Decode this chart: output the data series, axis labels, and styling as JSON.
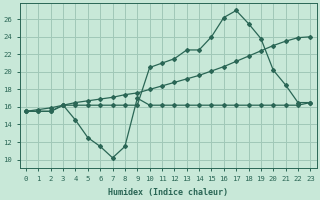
{
  "xlabel": "Humidex (Indice chaleur)",
  "bg_color": "#c8e8d8",
  "grid_color": "#a0c8b8",
  "line_color": "#2a6655",
  "xlim": [
    -0.5,
    23.5
  ],
  "ylim": [
    9.0,
    27.8
  ],
  "yticks": [
    10,
    12,
    14,
    16,
    18,
    20,
    22,
    24,
    26
  ],
  "xticks": [
    0,
    1,
    2,
    3,
    4,
    5,
    6,
    7,
    8,
    9,
    10,
    11,
    12,
    13,
    14,
    15,
    16,
    17,
    18,
    19,
    20,
    21,
    22,
    23
  ],
  "line1_x": [
    0,
    1,
    2,
    3,
    4,
    5,
    6,
    7,
    8,
    9,
    10,
    11,
    12,
    13,
    14,
    15,
    16,
    17,
    18,
    19,
    20,
    21,
    22,
    23
  ],
  "line1_y": [
    15.5,
    15.5,
    15.5,
    16.2,
    14.5,
    12.5,
    11.5,
    10.2,
    11.5,
    17.0,
    16.2,
    16.2,
    16.2,
    16.2,
    16.2,
    16.2,
    16.2,
    16.2,
    16.2,
    16.2,
    16.2,
    16.2,
    16.2,
    16.5
  ],
  "line2_x": [
    0,
    1,
    2,
    3,
    4,
    5,
    6,
    7,
    8,
    9,
    10,
    11,
    12,
    13,
    14,
    15,
    16,
    17,
    18,
    19,
    20,
    21,
    22,
    23
  ],
  "line2_y": [
    15.5,
    15.5,
    15.5,
    16.2,
    16.2,
    16.2,
    16.2,
    16.2,
    16.2,
    16.2,
    20.5,
    21.0,
    21.5,
    22.5,
    22.5,
    24.0,
    26.2,
    27.0,
    25.5,
    23.8,
    20.2,
    18.5,
    16.5,
    16.5
  ],
  "line3_x": [
    0,
    1,
    2,
    3,
    4,
    5,
    6,
    7,
    8,
    9,
    10,
    11,
    12,
    13,
    14,
    15,
    16,
    17,
    18,
    19,
    20,
    21,
    22,
    23
  ],
  "line3_y": [
    15.5,
    15.7,
    15.9,
    16.2,
    16.5,
    16.7,
    16.9,
    17.1,
    17.4,
    17.6,
    18.0,
    18.4,
    18.8,
    19.2,
    19.6,
    20.1,
    20.6,
    21.2,
    21.8,
    22.4,
    23.0,
    23.5,
    23.9,
    24.0
  ]
}
